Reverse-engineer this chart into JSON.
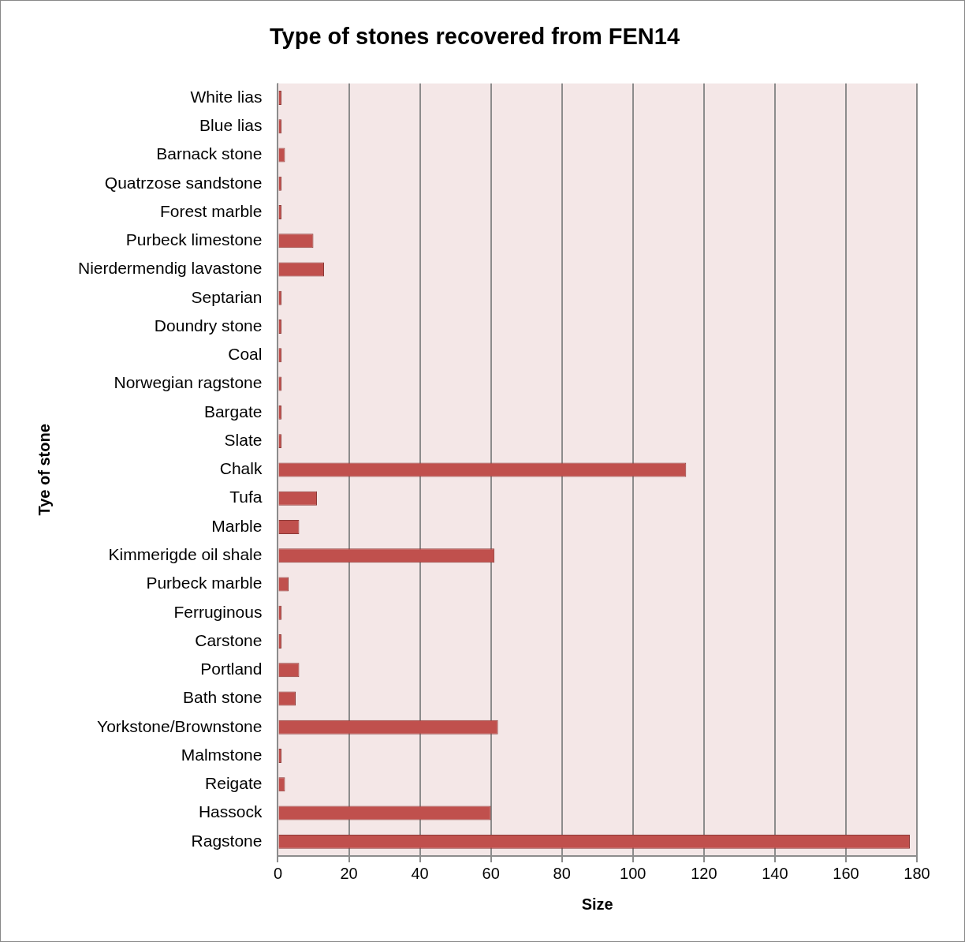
{
  "chart_data": {
    "type": "bar",
    "orientation": "horizontal",
    "title": "Type of stones recovered from FEN14",
    "xlabel": "Size",
    "ylabel": "Tye of stone",
    "categories": [
      "White lias",
      "Blue lias",
      "Barnack stone",
      "Quatrzose sandstone",
      "Forest marble",
      "Purbeck limestone",
      "Nierdermendig lavastone",
      "Septarian",
      "Doundry stone",
      "Coal",
      "Norwegian ragstone",
      "Bargate",
      "Slate",
      "Chalk",
      "Tufa",
      "Marble",
      "Kimmerigde oil shale",
      "Purbeck marble",
      "Ferruginous",
      "Carstone",
      "Portland",
      "Bath stone",
      "Yorkstone/Brownstone",
      "Malmstone",
      "Reigate",
      "Hassock",
      "Ragstone"
    ],
    "values": [
      1,
      1,
      2,
      1,
      1,
      10,
      13,
      1,
      1,
      1,
      1,
      1,
      1,
      115,
      11,
      6,
      61,
      3,
      1,
      1,
      6,
      5,
      62,
      1,
      2,
      60,
      178
    ],
    "color": "#c0504d",
    "xlim": [
      0,
      180
    ],
    "xticks": [
      0,
      20,
      40,
      60,
      80,
      100,
      120,
      140,
      160,
      180
    ],
    "grid": "x",
    "legend": false
  }
}
